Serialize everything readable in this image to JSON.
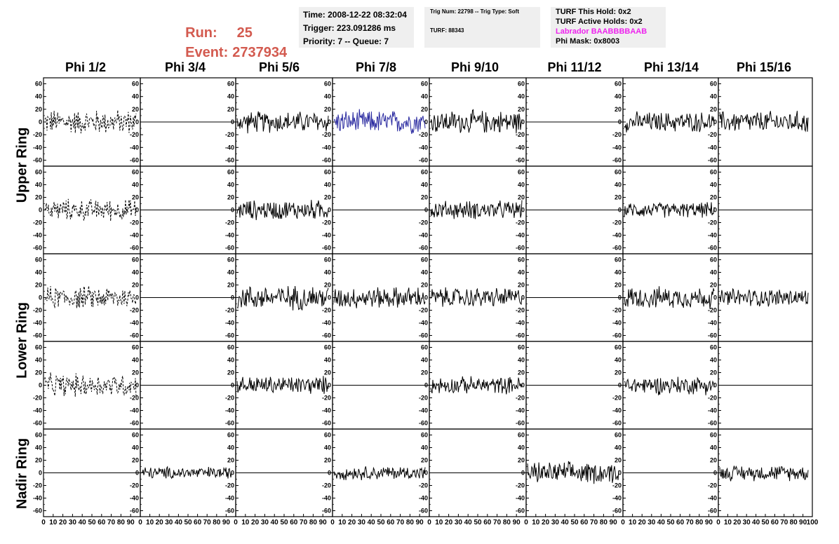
{
  "header": {
    "run_label": "Run:",
    "run_value": "25",
    "event_label": "Event:",
    "event_value": "2737934"
  },
  "info1": {
    "time": "Time: 2008-12-22 08:32:04",
    "trigger": "Trigger: 223.091286 ms",
    "priority": "Priority: 7 -- Queue: 7"
  },
  "info2": {
    "trig": "Trig Num: 22798 -- Trig Type: Soft",
    "turf": "TURF: 88343"
  },
  "info3": {
    "hold": "TURF This Hold: 0x2",
    "active": "TURF Active Holds: 0x2",
    "labrador": "Labrador BAABBBBAAB",
    "phimask": "Phi Mask: 0x8003"
  },
  "colors": {
    "run_text": "#d35a4f",
    "labrador": "#ee22ee",
    "highlight_trace": "#2a2aa0",
    "trace": "#000000",
    "info_bg": "#efefef"
  },
  "chart_data": {
    "type": "line",
    "columns": [
      "Phi 1/2",
      "Phi 3/4",
      "Phi 5/6",
      "Phi 7/8",
      "Phi 9/10",
      "Phi 11/12",
      "Phi 13/14",
      "Phi 15/16"
    ],
    "rows": [
      "Upper Ring",
      "Upper Ring",
      "Lower Ring",
      "Lower Ring",
      "Nadir Ring"
    ],
    "row_labels": [
      "Upper Ring",
      "Lower Ring",
      "Nadir Ring"
    ],
    "xlim": [
      0,
      100
    ],
    "ylim": [
      -65,
      65
    ],
    "x_ticks": [
      "0",
      "10",
      "20",
      "30",
      "40",
      "50",
      "60",
      "70",
      "80",
      "90",
      "100"
    ],
    "y_ticks": [
      "60",
      "40",
      "20",
      "0",
      "-20",
      "-40",
      "-60"
    ],
    "panel_styles": [
      [
        "dashed",
        "flat",
        "solid",
        "blue",
        "solid",
        "flat",
        "solid",
        "solid"
      ],
      [
        "dashed",
        "flat",
        "solid",
        "flat",
        "solid",
        "flat",
        "solid",
        "flat"
      ],
      [
        "dashed",
        "flat",
        "solid",
        "solid",
        "solid",
        "flat",
        "solid",
        "solid"
      ],
      [
        "dashed",
        "flat",
        "solid",
        "flat",
        "solid",
        "flat",
        "solid",
        "flat"
      ],
      [
        "flat",
        "solid",
        "flat",
        "solid",
        "flat",
        "solid",
        "flat",
        "solid"
      ]
    ],
    "panel_amplitude": [
      [
        16,
        0,
        14,
        15,
        15,
        0,
        13,
        14
      ],
      [
        14,
        0,
        13,
        0,
        12,
        0,
        10,
        0
      ],
      [
        15,
        0,
        16,
        14,
        13,
        0,
        14,
        12
      ],
      [
        15,
        0,
        12,
        0,
        11,
        0,
        12,
        0
      ],
      [
        0,
        8,
        0,
        9,
        0,
        14,
        0,
        10
      ]
    ],
    "samples_per_trace": 130
  }
}
